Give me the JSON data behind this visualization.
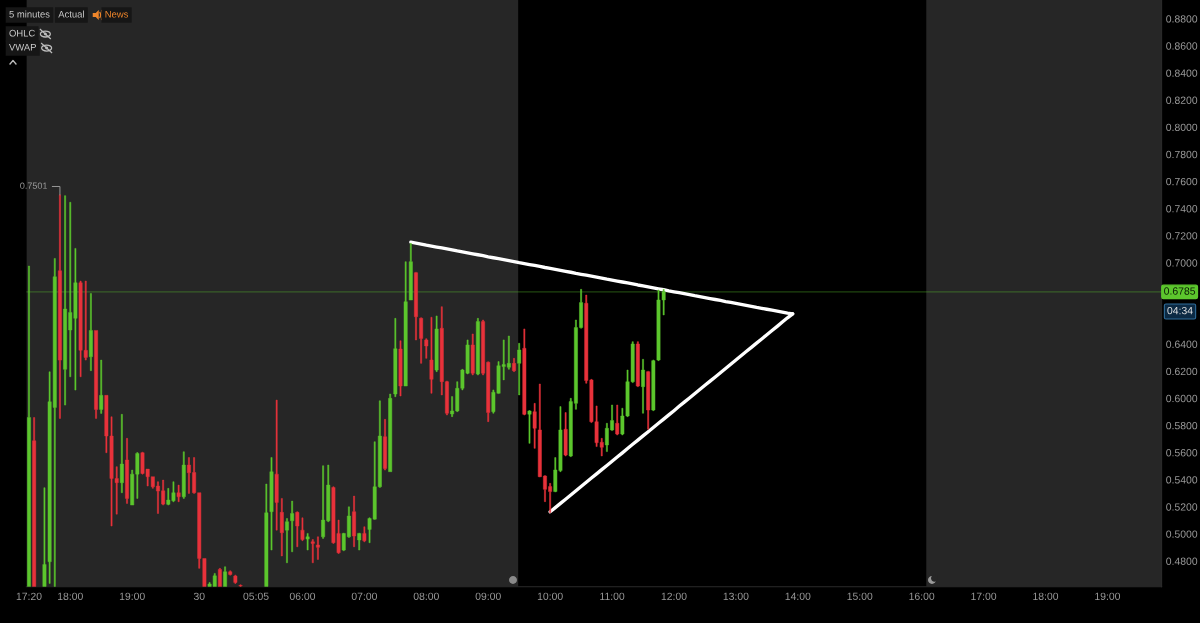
{
  "chart_data": {
    "type": "candlestick",
    "categories": [
      "17:20",
      null,
      null,
      null,
      null,
      null,
      null,
      null,
      "18:00",
      null,
      null,
      null,
      null,
      null,
      null,
      null,
      null,
      null,
      null,
      null,
      "19:00",
      null,
      null,
      null,
      null,
      null,
      null,
      null,
      null,
      null,
      null,
      null,
      null,
      "30",
      null,
      null,
      null,
      null,
      null,
      null,
      null,
      null,
      null,
      null,
      "05:05",
      null,
      null,
      null,
      null,
      null,
      null,
      null,
      null,
      "06:00",
      null,
      null,
      null,
      null,
      null,
      null,
      null,
      null,
      null,
      null,
      null,
      "07:00",
      null,
      null,
      null,
      null,
      null,
      null,
      null,
      null,
      null,
      null,
      null,
      "08:00",
      null,
      null,
      null,
      null,
      null,
      null,
      null,
      null,
      null,
      null,
      null,
      "09:00",
      null,
      null,
      null,
      null,
      null,
      null,
      null,
      null,
      null,
      null,
      null,
      "10:00",
      null,
      null,
      null,
      null,
      null,
      null,
      null,
      null,
      null,
      null,
      null,
      "11:00",
      null,
      null,
      null,
      null,
      null,
      null,
      null,
      null,
      null,
      null,
      null,
      "12:00",
      null,
      null,
      null,
      null,
      null,
      null,
      null,
      null,
      null,
      null,
      null,
      "13:00",
      null,
      null,
      null,
      null,
      null,
      null,
      null,
      null,
      null,
      null,
      null,
      "14:00",
      null,
      null,
      null,
      null,
      null,
      null,
      null,
      null,
      null,
      null,
      null,
      "15:00",
      null,
      null,
      null,
      null,
      null,
      null,
      null,
      null,
      null,
      null,
      null,
      "16:00",
      null,
      null,
      null,
      null,
      null,
      null,
      null,
      null,
      null,
      null,
      null,
      "17:00",
      null,
      null,
      null,
      null,
      null,
      null,
      null,
      null,
      null,
      null,
      null,
      "18:00",
      null,
      null,
      null,
      null,
      null,
      null,
      null,
      null,
      null,
      null,
      null,
      "19:00",
      null,
      null,
      null,
      null,
      null,
      null,
      null,
      null,
      null,
      null
    ],
    "series": [
      {
        "color": "#5cc62d",
        "ohlc": [
          [
            0.4611,
            0.6976,
            0.4611,
            0.5859
          ],
          null,
          null,
          [
            0.4611,
            0.5341,
            0.4611,
            0.4775
          ],
          [
            0.4795,
            0.6196,
            0.4635,
            0.5975
          ],
          [
            0.5933,
            0.7032,
            0.4611,
            0.6897
          ],
          null,
          [
            0.6214,
            0.7495,
            0.595,
            0.6659
          ],
          [
            0.6504,
            0.7446,
            0.6159,
            0.6634
          ],
          [
            0.659,
            0.7106,
            0.6061,
            0.6853
          ],
          null,
          null,
          [
            0.6307,
            0.6774,
            0.6204,
            0.6501
          ],
          null,
          [
            0.5918,
            0.6282,
            0.5889,
            0.6022
          ],
          null,
          null,
          null,
          [
            0.5378,
            0.5882,
            0.5304,
            0.5515
          ],
          null,
          [
            0.5213,
            0.5471,
            0.5213,
            0.5441
          ],
          [
            0.5441,
            0.56,
            0.5262,
            0.5594
          ],
          null,
          null,
          null,
          null,
          null,
          [
            0.5218,
            0.5336,
            0.5213,
            0.525
          ],
          [
            0.5245,
            0.5385,
            0.5237,
            0.5304
          ],
          null,
          [
            0.5274,
            0.5606,
            0.5262,
            0.5508
          ],
          null,
          null,
          null,
          null,
          [
            0.4611,
            0.4642,
            0.4611,
            0.463
          ],
          [
            0.4611,
            0.4709,
            0.4611,
            0.4691
          ],
          null,
          [
            0.4611,
            0.4758,
            0.4611,
            0.4721
          ],
          null,
          null,
          null,
          null,
          null,
          null,
          null,
          [
            0.4611,
            0.5368,
            0.4611,
            0.5156
          ],
          [
            0.5164,
            0.5564,
            0.4881,
            0.5459
          ],
          null,
          null,
          [
            0.5028,
            0.5114,
            0.4787,
            0.509
          ],
          [
            0.5097,
            0.5242,
            0.4868,
            0.5151
          ],
          null,
          null,
          [
            0.4962,
            0.5004,
            0.4881,
            0.4979
          ],
          null,
          null,
          [
            0.4979,
            0.5503,
            0.4967,
            0.5102
          ],
          [
            0.5097,
            0.5508,
            0.509,
            0.536
          ],
          null,
          null,
          [
            0.4881,
            0.5006,
            0.4876,
            0.5004
          ],
          [
            0.4979,
            0.52,
            0.4974,
            0.5132
          ],
          null,
          [
            0.4955,
            0.5006,
            0.4881,
            0.5004
          ],
          null,
          [
            0.5033,
            0.5119,
            0.4935,
            0.5114
          ],
          [
            0.5109,
            0.568,
            0.5107,
            0.5348
          ],
          [
            0.5348,
            0.5982,
            0.5343,
            0.5722
          ],
          null,
          [
            0.5459,
            0.6032,
            0.5459,
            0.6
          ],
          [
            0.6032,
            0.659,
            0.6012,
            0.6366
          ],
          null,
          [
            0.6091,
            0.7008,
            0.6091,
            0.6713
          ],
          [
            0.6725,
            0.7143,
            0.6725,
            0.7008
          ],
          null,
          null,
          null,
          null,
          [
            0.6209,
            0.6608,
            0.6197,
            0.6512
          ],
          null,
          null,
          [
            0.5885,
            0.6013,
            0.5865,
            0.5907
          ],
          [
            0.5907,
            0.6123,
            0.5902,
            0.6074
          ],
          [
            0.6074,
            0.6214,
            0.6062,
            0.6209
          ],
          [
            0.6185,
            0.6431,
            0.618,
            0.6394
          ],
          null,
          [
            0.618,
            0.659,
            0.6172,
            0.6566
          ],
          null,
          null,
          [
            0.5902,
            0.6062,
            0.589,
            0.6045
          ],
          [
            0.6037,
            0.6271,
            0.6035,
            0.6241
          ],
          [
            0.6234,
            0.6431,
            0.6136,
            0.6249
          ],
          [
            0.6229,
            0.646,
            0.6214,
            0.6258
          ],
          null,
          [
            0.6258,
            0.6406,
            0.6025,
            0.6357
          ],
          null,
          [
            0.5882,
            0.591,
            0.5668,
            0.5907
          ],
          null,
          null,
          null,
          null,
          [
            0.5312,
            0.5563,
            0.531,
            0.5472
          ],
          [
            0.5467,
            0.5939,
            0.5459,
            0.5767
          ],
          null,
          [
            0.5575,
            0.6,
            0.557,
            0.5976
          ],
          [
            0.5963,
            0.6578,
            0.5919,
            0.6522
          ],
          [
            0.6522,
            0.6804,
            0.6517,
            0.6706
          ],
          null,
          null,
          null,
          null,
          [
            0.5656,
            0.5816,
            0.5607,
            0.5779
          ],
          [
            0.5767,
            0.5951,
            0.5762,
            0.5836
          ],
          null,
          [
            0.5737,
            0.5927,
            0.573,
            0.587
          ],
          [
            0.587,
            0.6209,
            0.5865,
            0.6123
          ],
          [
            0.6123,
            0.6418,
            0.6116,
            0.6401
          ],
          null,
          [
            0.6086,
            0.6288,
            0.589,
            0.6209
          ],
          null,
          [
            0.5914,
            0.6283,
            0.5909,
            0.6278
          ],
          [
            0.6283,
            0.6799,
            0.6278,
            0.6726
          ],
          [
            0.6726,
            0.6804,
            0.6615,
            0.6785
          ],
          null,
          null,
          null,
          null,
          null,
          null,
          null,
          null,
          null,
          null,
          null,
          null,
          null,
          null,
          null,
          null,
          null,
          null,
          null,
          null,
          null,
          null,
          null,
          null,
          null,
          null,
          null,
          null,
          null,
          null,
          null,
          null,
          null,
          null,
          null,
          null,
          null,
          null,
          null,
          null,
          null,
          null,
          null,
          null,
          null,
          null,
          null,
          null,
          null,
          null,
          null,
          null,
          null,
          null,
          null,
          null,
          null,
          null,
          null,
          null,
          null,
          null,
          null,
          null,
          null,
          null,
          null,
          null,
          null,
          null,
          null,
          null,
          null,
          null,
          null,
          null,
          null,
          null,
          null,
          null,
          null,
          null,
          null,
          null,
          null,
          null,
          null,
          null,
          null,
          null,
          null,
          null,
          null,
          null,
          null,
          null
        ]
      },
      {
        "color": "#e8323b",
        "ohlc": [
          null,
          [
            0.5687,
            0.5859,
            0.4611,
            0.4611
          ],
          null,
          null,
          null,
          null,
          [
            0.6941,
            0.7501,
            0.5852,
            0.6282
          ],
          null,
          null,
          null,
          [
            0.6853,
            0.6865,
            0.6159,
            0.6354
          ],
          [
            0.6354,
            0.6865,
            0.6282,
            0.6302
          ],
          null,
          [
            0.6501,
            0.6501,
            0.5852,
            0.5918
          ],
          null,
          [
            0.6022,
            0.6022,
            0.5599,
            0.5722
          ],
          [
            0.5722,
            0.5864,
            0.5058,
            0.5409
          ],
          [
            0.5409,
            0.5496,
            0.5146,
            0.5378
          ],
          null,
          [
            0.5545,
            0.5705,
            0.5225,
            0.5262
          ],
          null,
          null,
          [
            0.5599,
            0.5603,
            0.5441,
            0.5446
          ],
          [
            0.5478,
            0.5478,
            0.5353,
            0.5422
          ],
          [
            0.5422,
            0.5422,
            0.5336,
            0.5348
          ],
          [
            0.5353,
            0.5385,
            0.5151,
            0.5316
          ],
          [
            0.5318,
            0.5397,
            0.5213,
            0.522
          ],
          null,
          null,
          [
            0.5304,
            0.536,
            0.5237,
            0.5274
          ],
          null,
          [
            0.5508,
            0.5564,
            0.5299,
            0.5451
          ],
          [
            0.5453,
            0.5564,
            0.5299,
            0.5304
          ],
          [
            0.5304,
            0.5304,
            0.4746,
            0.4819
          ],
          [
            0.4819,
            0.4819,
            0.4611,
            0.4611
          ],
          null,
          null,
          [
            0.4738,
            0.4746,
            0.4611,
            0.4611
          ],
          null,
          [
            0.4721,
            0.4728,
            0.4696,
            0.4701
          ],
          [
            0.4689,
            0.4696,
            0.4635,
            0.4642
          ],
          [
            0.462,
            0.4625,
            0.4611,
            0.4616
          ],
          null,
          null,
          null,
          null,
          null,
          null,
          [
            0.5441,
            0.5987,
            0.5028,
            0.5232
          ],
          [
            0.5159,
            0.5262,
            0.4837,
            0.5009
          ],
          null,
          null,
          [
            0.5159,
            0.5164,
            0.4905,
            0.5058
          ],
          [
            0.5028,
            0.5119,
            0.495,
            0.4959
          ],
          null,
          [
            0.4942,
            0.4959,
            0.4787,
            0.493
          ],
          [
            0.4918,
            0.4979,
            0.4812,
            0.4901
          ],
          null,
          null,
          [
            0.5343,
            0.5348,
            0.493,
            0.4935
          ],
          [
            0.5004,
            0.5102,
            0.4856,
            0.4861
          ],
          null,
          null,
          [
            0.5164,
            0.5279,
            0.4905,
            0.4984
          ],
          null,
          [
            0.5004,
            0.5053,
            0.4942,
            0.495
          ],
          null,
          null,
          null,
          [
            0.5717,
            0.5845,
            0.5471,
            0.5483
          ],
          null,
          null,
          [
            0.6364,
            0.6425,
            0.6017,
            0.6091
          ],
          null,
          null,
          [
            0.6927,
            0.693,
            0.643,
            0.6602
          ],
          [
            0.659,
            0.6595,
            0.6258,
            0.6442
          ],
          [
            0.643,
            0.644,
            0.6295,
            0.6386
          ],
          [
            0.6283,
            0.6598,
            0.6037,
            0.614
          ],
          null,
          [
            0.6517,
            0.6676,
            0.6025,
            0.6123
          ],
          [
            0.6123,
            0.6128,
            0.5877,
            0.589
          ],
          null,
          null,
          null,
          null,
          [
            0.6394,
            0.6475,
            0.6172,
            0.6185
          ],
          null,
          [
            0.6566,
            0.6578,
            0.6172,
            0.6185
          ],
          [
            0.6266,
            0.627,
            0.5828,
            0.5895
          ],
          null,
          null,
          null,
          null,
          [
            0.6258,
            0.6295,
            0.6197,
            0.6204
          ],
          null,
          [
            0.6369,
            0.6512,
            0.5877,
            0.5882
          ],
          null,
          [
            0.5902,
            0.5963,
            0.5631,
            0.5779
          ],
          [
            0.5767,
            0.6106,
            0.542,
            0.5422
          ],
          [
            0.5427,
            0.543,
            0.5238,
            0.5329
          ],
          [
            0.5349,
            0.5373,
            0.5157,
            0.5312
          ],
          null,
          null,
          [
            0.5772,
            0.5895,
            0.5575,
            0.5582
          ],
          null,
          null,
          null,
          [
            0.6701,
            0.6762,
            0.6111,
            0.6131
          ],
          [
            0.6136,
            0.614,
            0.5821,
            0.5828
          ],
          [
            0.5828,
            0.5944,
            0.5644,
            0.5673
          ],
          [
            0.5676,
            0.5705,
            0.5575,
            0.5639
          ],
          null,
          null,
          [
            0.5816,
            0.5951,
            0.573,
            0.5737
          ],
          null,
          null,
          null,
          [
            0.6401,
            0.6418,
            0.6086,
            0.6091
          ],
          null,
          [
            0.6197,
            0.62,
            0.5772,
            0.5914
          ],
          null,
          null,
          null,
          null,
          null,
          null,
          null,
          null,
          null,
          null,
          null,
          null,
          null,
          null,
          null,
          null,
          null,
          null,
          null,
          null,
          null,
          null,
          null,
          null,
          null,
          null,
          null,
          null,
          null,
          null,
          null,
          null,
          null,
          null,
          null,
          null,
          null,
          null,
          null,
          null,
          null,
          null,
          null,
          null,
          null,
          null,
          null,
          null,
          null,
          null,
          null,
          null,
          null,
          null,
          null,
          null,
          null,
          null,
          null,
          null,
          null,
          null,
          null,
          null,
          null,
          null,
          null,
          null,
          null,
          null,
          null,
          null,
          null,
          null,
          null,
          null,
          null,
          null,
          null,
          null,
          null,
          null,
          null,
          null,
          null,
          null,
          null,
          null,
          null,
          null,
          null,
          null,
          null,
          null,
          null,
          null,
          null,
          null,
          null
        ]
      },
      {
        "type": "line",
        "color": "#ffffff",
        "values": [
          null,
          null,
          null,
          null,
          null,
          null,
          null,
          null,
          null,
          null,
          null,
          null,
          null,
          null,
          null,
          null,
          null,
          null,
          null,
          null,
          null,
          null,
          null,
          null,
          null,
          null,
          null,
          null,
          null,
          null,
          null,
          null,
          null,
          null,
          null,
          null,
          null,
          null,
          null,
          null,
          null,
          null,
          null,
          null,
          null,
          null,
          null,
          null,
          null,
          null,
          null,
          null,
          null,
          null,
          null,
          null,
          null,
          null,
          null,
          null,
          null,
          null,
          null,
          null,
          null,
          null,
          null,
          null,
          null,
          null,
          null,
          null,
          null,
          null,
          0.7152,
          0.7145,
          0.7138,
          0.713,
          0.7123,
          0.7116,
          0.7109,
          0.7102,
          0.7095,
          0.7087,
          0.708,
          0.7073,
          0.7066,
          0.7059,
          0.7052,
          0.7044,
          0.7037,
          0.703,
          0.7023,
          0.7016,
          0.7009,
          0.7001,
          0.6994,
          0.6987,
          0.698,
          0.6973,
          0.6965,
          0.6958,
          0.6951,
          0.6944,
          0.6937,
          0.693,
          0.6922,
          0.6915,
          0.6908,
          0.6901,
          0.6894,
          0.6887,
          0.6879,
          0.6872,
          0.6865,
          0.6858,
          0.6851,
          0.6844,
          0.6836,
          0.6829,
          0.6822,
          0.6815,
          0.6808,
          0.6801,
          0.6793,
          0.6786,
          0.6779,
          0.6772,
          0.6765,
          0.6757,
          0.675,
          0.6743,
          0.6736,
          0.6729,
          0.6722,
          0.6714,
          0.6707,
          0.67,
          0.6693,
          0.6686,
          0.6679,
          0.6671,
          0.6664,
          0.6657,
          0.665,
          0.6643,
          0.6636,
          0.6628,
          0.6623,
          null,
          null,
          null,
          null,
          null,
          null,
          null,
          null,
          null,
          null,
          null,
          null,
          null,
          null,
          null,
          null,
          null,
          null,
          null,
          null,
          null,
          null,
          null,
          null,
          null,
          null,
          null,
          null,
          null,
          null,
          null,
          null,
          null,
          null,
          null,
          null,
          null,
          null,
          null,
          null,
          null,
          null,
          null,
          null,
          null,
          null,
          null,
          null,
          null,
          null,
          null,
          null,
          null,
          null,
          null,
          null,
          null,
          null,
          null,
          null,
          null,
          null,
          null,
          null,
          null,
          null,
          null,
          null,
          null,
          null,
          null
        ]
      },
      {
        "type": "line",
        "color": "#ffffff",
        "values": [
          null,
          null,
          null,
          null,
          null,
          null,
          null,
          null,
          null,
          null,
          null,
          null,
          null,
          null,
          null,
          null,
          null,
          null,
          null,
          null,
          null,
          null,
          null,
          null,
          null,
          null,
          null,
          null,
          null,
          null,
          null,
          null,
          null,
          null,
          null,
          null,
          null,
          null,
          null,
          null,
          null,
          null,
          null,
          null,
          null,
          null,
          null,
          null,
          null,
          null,
          null,
          null,
          null,
          null,
          null,
          null,
          null,
          null,
          null,
          null,
          null,
          null,
          null,
          null,
          null,
          null,
          null,
          null,
          null,
          null,
          null,
          null,
          null,
          null,
          null,
          null,
          null,
          null,
          null,
          null,
          null,
          null,
          null,
          null,
          null,
          null,
          null,
          null,
          null,
          null,
          null,
          null,
          null,
          null,
          null,
          null,
          null,
          null,
          null,
          null,
          null,
          0.5163,
          0.5194,
          0.5225,
          0.5256,
          0.5287,
          0.5319,
          0.535,
          0.5381,
          0.5412,
          0.5443,
          0.5474,
          0.5505,
          0.5536,
          0.5567,
          0.5598,
          0.563,
          0.5661,
          0.5692,
          0.5723,
          0.5754,
          0.5785,
          0.5816,
          0.5847,
          0.5878,
          0.5909,
          0.5941,
          0.5972,
          0.6003,
          0.6034,
          0.6065,
          0.6096,
          0.6127,
          0.6158,
          0.6189,
          0.622,
          0.6252,
          0.6283,
          0.6314,
          0.6345,
          0.6376,
          0.6407,
          0.6438,
          0.6469,
          0.65,
          0.6531,
          0.6563,
          0.6594,
          0.6623,
          null,
          null,
          null,
          null,
          null,
          null,
          null,
          null,
          null,
          null,
          null,
          null,
          null,
          null,
          null,
          null,
          null,
          null,
          null,
          null,
          null,
          null,
          null,
          null,
          null,
          null,
          null,
          null,
          null,
          null,
          null,
          null,
          null,
          null,
          null,
          null,
          null,
          null,
          null,
          null,
          null,
          null,
          null,
          null,
          null,
          null,
          null,
          null,
          null,
          null,
          null,
          null,
          null,
          null,
          null,
          null,
          null,
          null,
          null,
          null,
          null,
          null,
          null,
          null,
          null,
          null,
          null,
          null,
          null,
          null,
          null
        ]
      }
    ],
    "ylim": [
      0.461,
      0.8938
    ],
    "yticks": [
      {
        "value": 0.48,
        "label": "0.4800"
      },
      {
        "value": 0.5,
        "label": "0.5000"
      },
      {
        "value": 0.52,
        "label": "0.5200"
      },
      {
        "value": 0.54,
        "label": "0.5400"
      },
      {
        "value": 0.56,
        "label": "0.5600"
      },
      {
        "value": 0.58,
        "label": "0.5800"
      },
      {
        "value": 0.6,
        "label": "0.6000"
      },
      {
        "value": 0.62,
        "label": "0.6200"
      },
      {
        "value": 0.64,
        "label": "0.6400"
      },
      {
        "value": 0.7,
        "label": "0.7000"
      },
      {
        "value": 0.72,
        "label": "0.7200"
      },
      {
        "value": 0.74,
        "label": "0.7400"
      },
      {
        "value": 0.76,
        "label": "0.7600"
      },
      {
        "value": 0.78,
        "label": "0.7800"
      },
      {
        "value": 0.8,
        "label": "0.8000"
      },
      {
        "value": 0.82,
        "label": "0.8200"
      },
      {
        "value": 0.84,
        "label": "0.8400"
      },
      {
        "value": 0.86,
        "label": "0.8600"
      },
      {
        "value": 0.88,
        "label": "0.8800"
      }
    ],
    "ref_lines": [
      {
        "axis": "y",
        "value": 0.6785,
        "label": "0.6785",
        "color": "#5cc62d",
        "line_style": "solid"
      }
    ],
    "annotations": [
      "5 minutes",
      "Actual",
      "News",
      "OHLC",
      "VWAP",
      "04:34",
      "0.7501"
    ]
  }
}
